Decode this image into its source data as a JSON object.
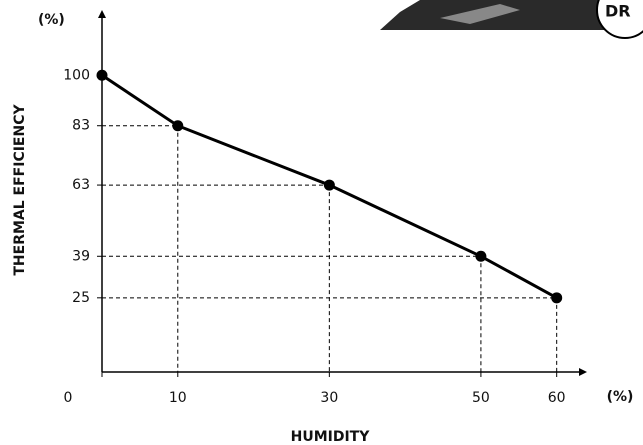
{
  "chart_data": {
    "type": "line",
    "x_label": "HUMIDITY",
    "y_label": "THERMAL EFFICIENCY",
    "x_unit": "(%)",
    "y_unit": "(%)",
    "x": [
      0,
      10,
      30,
      50,
      60
    ],
    "series": [
      {
        "color": "#000000",
        "values": [
          100,
          83,
          63,
          39,
          25
        ]
      }
    ],
    "xlim": [
      0,
      64
    ],
    "ylim": [
      0,
      122
    ],
    "xticks": [
      0,
      10,
      30,
      50,
      60
    ],
    "yticks": [
      25,
      39,
      63,
      83,
      100
    ],
    "guides": true,
    "corner_badge_text": "DR"
  }
}
